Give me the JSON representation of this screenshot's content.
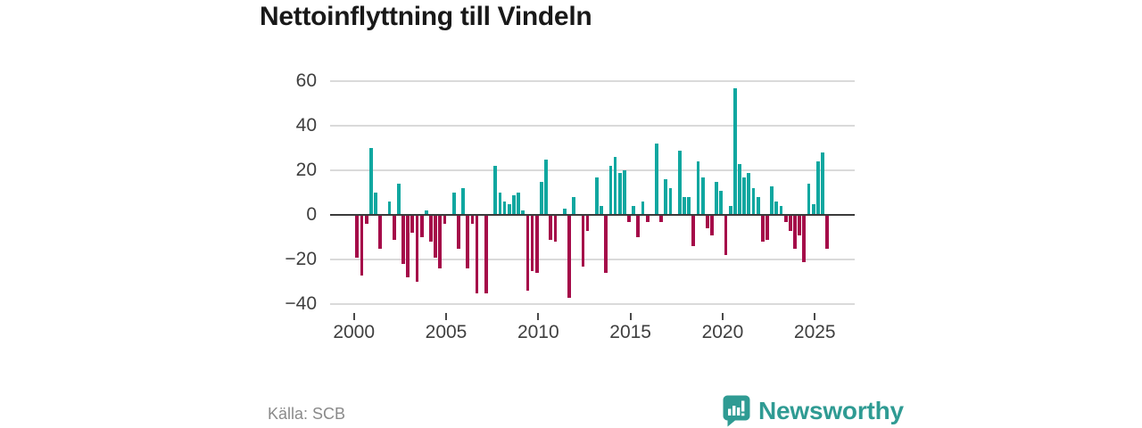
{
  "title": "Nettoinflyttning till Vindeln",
  "source": "Källa: SCB",
  "brand": {
    "name": "Newsworthy",
    "color": "#2f9b93",
    "icon": "bar-chart-pin-icon"
  },
  "chart_data": {
    "type": "bar",
    "title": "Nettoinflyttning till Vindeln",
    "frequency": "quarterly",
    "start_year": 2000,
    "start_quarter": 1,
    "end_label": "2025Q3",
    "positive_color": "#0fa7a0",
    "negative_color": "#a50b49",
    "ylim": [
      -40,
      60
    ],
    "yticks": [
      60,
      40,
      20,
      0,
      -20,
      -40
    ],
    "xticks": [
      2000,
      2005,
      2010,
      2015,
      2020,
      2025
    ],
    "grid": true,
    "legend": "none",
    "values": [
      -19,
      -27,
      -4,
      30,
      10,
      -15,
      0,
      6,
      -11,
      14,
      -22,
      -28,
      -8,
      -30,
      -10,
      2,
      -12,
      -19,
      -24,
      -4,
      0,
      10,
      -15,
      12,
      -24,
      -4,
      -35,
      0,
      -35,
      0,
      22,
      10,
      6,
      5,
      9,
      10,
      2,
      -34,
      -25,
      -26,
      15,
      25,
      -11,
      -12,
      0,
      3,
      -37,
      8,
      0,
      -23,
      -7,
      0,
      17,
      4,
      -26,
      22,
      26,
      19,
      20,
      -3,
      4,
      -10,
      6,
      -3,
      0,
      32,
      -3,
      16,
      12,
      0,
      29,
      8,
      8,
      -14,
      24,
      17,
      -6,
      -9,
      15,
      11,
      -18,
      4,
      57,
      23,
      17,
      19,
      12,
      8,
      -12,
      -11,
      13,
      6,
      4,
      -3,
      -7,
      -15,
      -9,
      -21,
      14,
      5,
      24,
      28,
      -15
    ]
  }
}
